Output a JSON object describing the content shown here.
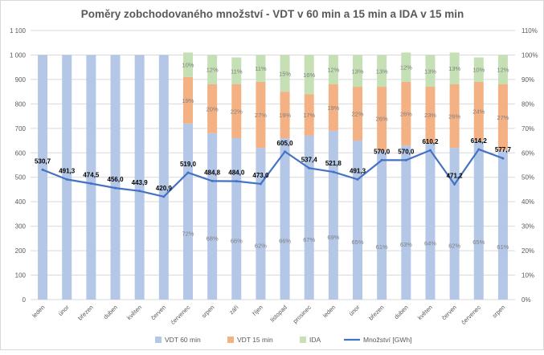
{
  "chart_data": {
    "type": "bar",
    "subtype": "stacked-percent-bar-with-line",
    "title": "Poměry zobchodovaného množství - VDT v 60 min a 15 min a IDA v 15 min",
    "categories": [
      "leden",
      "únor",
      "březen",
      "duben",
      "květen",
      "červen",
      "červenec",
      "srpen",
      "září",
      "říjen",
      "listopad",
      "prosinec",
      "leden",
      "únor",
      "březen",
      "duben",
      "květen",
      "červen",
      "červenec",
      "srpen"
    ],
    "series": [
      {
        "name": "VDT 60 min",
        "axis": "right",
        "color": "#b4c7e7",
        "values": [
          100,
          100,
          100,
          100,
          100,
          100,
          72,
          68,
          66,
          62,
          66,
          67,
          69,
          65,
          61,
          63,
          64,
          62,
          65,
          61
        ],
        "labels": [
          "",
          "",
          "",
          "",
          "",
          "",
          "72%",
          "68%",
          "66%",
          "62%",
          "66%",
          "67%",
          "69%",
          "65%",
          "61%",
          "63%",
          "64%",
          "62%",
          "65%",
          "61%"
        ]
      },
      {
        "name": "VDT 15 min",
        "axis": "right",
        "color": "#f4b183",
        "values": [
          0,
          0,
          0,
          0,
          0,
          0,
          19,
          20,
          22,
          27,
          19,
          17,
          19,
          22,
          26,
          26,
          23,
          26,
          24,
          27
        ],
        "labels": [
          "",
          "",
          "",
          "",
          "",
          "",
          "19%",
          "20%",
          "22%",
          "27%",
          "19%",
          "17%",
          "19%",
          "22%",
          "26%",
          "26%",
          "23%",
          "26%",
          "24%",
          "27%"
        ]
      },
      {
        "name": "IDA",
        "axis": "right",
        "color": "#c5e0b4",
        "values": [
          0,
          0,
          0,
          0,
          0,
          0,
          10,
          12,
          11,
          11,
          15,
          16,
          12,
          13,
          13,
          12,
          13,
          13,
          10,
          12
        ],
        "labels": [
          "",
          "",
          "",
          "",
          "",
          "",
          "10%",
          "12%",
          "11%",
          "11%",
          "15%",
          "16%",
          "12%",
          "13%",
          "13%",
          "12%",
          "13%",
          "13%",
          "10%",
          "12%"
        ]
      },
      {
        "name": "Množství [GWh]",
        "type": "line",
        "axis": "left",
        "color": "#4472c4",
        "values": [
          530.7,
          491.3,
          474.5,
          456.0,
          443.9,
          420.9,
          519.0,
          484.8,
          484.0,
          473.0,
          605.0,
          537.4,
          521.8,
          491.3,
          570.0,
          570.0,
          610.2,
          471.2,
          614.2,
          577.7
        ],
        "labels": [
          "530,7",
          "491,3",
          "474,5",
          "456,0",
          "443,9",
          "420,9",
          "519,0",
          "484,8",
          "484,0",
          "473,0",
          "605,0",
          "537,4",
          "521,8",
          "491,3",
          "570,0",
          "570,0",
          "610,2",
          "471,2",
          "614,2",
          "577,7"
        ]
      }
    ],
    "left_axis": {
      "ylim": [
        0,
        1100
      ],
      "ticks": [
        "0",
        "100",
        "200",
        "300",
        "400",
        "500",
        "600",
        "700",
        "800",
        "900",
        "1 000",
        "1 100"
      ]
    },
    "right_axis": {
      "ylim": [
        0,
        110
      ],
      "ticks": [
        "0%",
        "10%",
        "20%",
        "30%",
        "40%",
        "50%",
        "60%",
        "70%",
        "80%",
        "90%",
        "100%",
        "110%"
      ]
    },
    "grid": true,
    "legend": "bottom"
  }
}
